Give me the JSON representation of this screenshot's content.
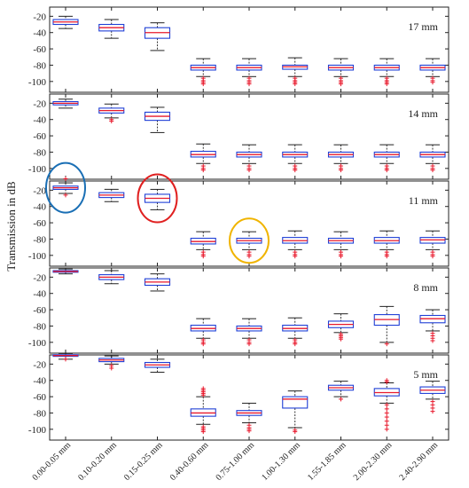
{
  "chart_data": {
    "type": "box",
    "ylabel": "Transmission in dB",
    "categories": [
      "0.00-0.05 mm",
      "0.10-0.20 mm",
      "0.15-0.25 mm",
      "0.40-0.60 mm",
      "0.75-1.00 mm",
      "1.00-1.30 mm",
      "1.55-1.85 mm",
      "2.00-2.30 mm",
      "2.40-2.90 mm"
    ],
    "yticks": [
      -20,
      -40,
      -60,
      -80,
      -100
    ],
    "ylim": [
      -110,
      -12
    ],
    "colors": {
      "box": "#1f3fd6",
      "median": "#e8192c",
      "whisker": "#222222",
      "outlier": "#e8192c"
    },
    "panels": [
      {
        "label": "17 mm",
        "boxes": [
          {
            "wl": -35,
            "q1": -30,
            "med": -27,
            "q3": -24,
            "wh": -20,
            "out": []
          },
          {
            "wl": -47,
            "q1": -38,
            "med": -34,
            "q3": -30,
            "wh": -24,
            "out": []
          },
          {
            "wl": -62,
            "q1": -47,
            "med": -40,
            "q3": -34,
            "wh": -28,
            "out": []
          },
          {
            "wl": -94,
            "q1": -86,
            "med": -83,
            "q3": -80,
            "wh": -72,
            "out": [
              -96,
              -99,
              -101,
              -103
            ]
          },
          {
            "wl": -94,
            "q1": -86,
            "med": -83,
            "q3": -80,
            "wh": -72,
            "out": [
              -96,
              -99,
              -101,
              -103
            ]
          },
          {
            "wl": -94,
            "q1": -85,
            "med": -82,
            "q3": -80,
            "wh": -71,
            "out": [
              -96,
              -99,
              -101,
              -103
            ]
          },
          {
            "wl": -94,
            "q1": -86,
            "med": -83,
            "q3": -80,
            "wh": -72,
            "out": [
              -96,
              -99,
              -101,
              -103
            ]
          },
          {
            "wl": -94,
            "q1": -86,
            "med": -83,
            "q3": -80,
            "wh": -72,
            "out": [
              -96,
              -99,
              -101,
              -103
            ]
          },
          {
            "wl": -94,
            "q1": -86,
            "med": -83,
            "q3": -80,
            "wh": -72,
            "out": [
              -96,
              -99,
              -101
            ]
          }
        ]
      },
      {
        "label": "14 mm",
        "boxes": [
          {
            "wl": -26,
            "q1": -22,
            "med": -20,
            "q3": -18,
            "wh": -15,
            "out": []
          },
          {
            "wl": -38,
            "q1": -32,
            "med": -29,
            "q3": -26,
            "wh": -21,
            "out": [
              -40,
              -42
            ]
          },
          {
            "wl": -56,
            "q1": -41,
            "med": -36,
            "q3": -31,
            "wh": -25,
            "out": []
          },
          {
            "wl": -94,
            "q1": -86,
            "med": -83,
            "q3": -79,
            "wh": -70,
            "out": [
              -97,
              -100,
              -102
            ]
          },
          {
            "wl": -94,
            "q1": -86,
            "med": -83,
            "q3": -80,
            "wh": -71,
            "out": [
              -97,
              -100,
              -102
            ]
          },
          {
            "wl": -94,
            "q1": -86,
            "med": -83,
            "q3": -80,
            "wh": -71,
            "out": [
              -97,
              -100,
              -102
            ]
          },
          {
            "wl": -94,
            "q1": -86,
            "med": -83,
            "q3": -80,
            "wh": -71,
            "out": [
              -97,
              -100,
              -102
            ]
          },
          {
            "wl": -94,
            "q1": -86,
            "med": -83,
            "q3": -80,
            "wh": -71,
            "out": [
              -97,
              -100,
              -102
            ]
          },
          {
            "wl": -94,
            "q1": -86,
            "med": -83,
            "q3": -80,
            "wh": -71,
            "out": [
              -97,
              -100,
              -102
            ]
          }
        ]
      },
      {
        "label": "11 mm",
        "boxes": [
          {
            "wl": -24,
            "q1": -19,
            "med": -17,
            "q3": -15,
            "wh": -11,
            "out": [
              -26,
              -6
            ]
          },
          {
            "wl": -34,
            "q1": -29,
            "med": -26,
            "q3": -23,
            "wh": -19,
            "out": []
          },
          {
            "wl": -44,
            "q1": -35,
            "med": -30,
            "q3": -25,
            "wh": -19,
            "out": []
          },
          {
            "wl": -93,
            "q1": -86,
            "med": -83,
            "q3": -79,
            "wh": -71,
            "out": [
              -96,
              -99,
              -101
            ]
          },
          {
            "wl": -93,
            "q1": -85,
            "med": -82,
            "q3": -79,
            "wh": -71,
            "out": [
              -96,
              -99,
              -101
            ]
          },
          {
            "wl": -93,
            "q1": -85,
            "med": -82,
            "q3": -78,
            "wh": -70,
            "out": [
              -96,
              -99,
              -101
            ]
          },
          {
            "wl": -93,
            "q1": -85,
            "med": -82,
            "q3": -79,
            "wh": -71,
            "out": [
              -96,
              -99,
              -101
            ]
          },
          {
            "wl": -93,
            "q1": -85,
            "med": -82,
            "q3": -78,
            "wh": -70,
            "out": [
              -96,
              -99,
              -101
            ]
          },
          {
            "wl": -93,
            "q1": -85,
            "med": -81,
            "q3": -78,
            "wh": -70,
            "out": [
              -96,
              -99,
              -101
            ]
          }
        ]
      },
      {
        "label": "8 mm",
        "boxes": [
          {
            "wl": -16,
            "q1": -14,
            "med": -13,
            "q3": -12,
            "wh": -10,
            "out": []
          },
          {
            "wl": -28,
            "q1": -23,
            "med": -20,
            "q3": -17,
            "wh": -12,
            "out": []
          },
          {
            "wl": -37,
            "q1": -30,
            "med": -26,
            "q3": -22,
            "wh": -16,
            "out": []
          },
          {
            "wl": -95,
            "q1": -86,
            "med": -83,
            "q3": -79,
            "wh": -71,
            "out": [
              -97,
              -100,
              -102
            ]
          },
          {
            "wl": -95,
            "q1": -86,
            "med": -83,
            "q3": -80,
            "wh": -71,
            "out": [
              -97,
              -100,
              -102
            ]
          },
          {
            "wl": -95,
            "q1": -86,
            "med": -83,
            "q3": -79,
            "wh": -70,
            "out": [
              -97,
              -100,
              -102
            ]
          },
          {
            "wl": -88,
            "q1": -82,
            "med": -78,
            "q3": -74,
            "wh": -65,
            "out": [
              -90,
              -92,
              -94,
              -96
            ]
          },
          {
            "wl": -100,
            "q1": -79,
            "med": -72,
            "q3": -66,
            "wh": -56,
            "out": [
              -102
            ]
          },
          {
            "wl": -86,
            "q1": -76,
            "med": -71,
            "q3": -67,
            "wh": -60,
            "out": [
              -89,
              -92,
              -95,
              -98
            ]
          }
        ]
      },
      {
        "label": "5 mm",
        "boxes": [
          {
            "wl": -14,
            "q1": -10.5,
            "med": -9.5,
            "q3": -8.5,
            "wh": -7,
            "out": [
              -14
            ]
          },
          {
            "wl": -20,
            "q1": -17,
            "med": -15,
            "q3": -13,
            "wh": -10,
            "out": [
              -22,
              -25
            ]
          },
          {
            "wl": -30,
            "q1": -24,
            "med": -21,
            "q3": -18,
            "wh": -14,
            "out": []
          },
          {
            "wl": -94,
            "q1": -84,
            "med": -80,
            "q3": -75,
            "wh": -60,
            "out": [
              -50,
              -52,
              -54,
              -56,
              -58,
              -97,
              -99,
              -101,
              -103
            ]
          },
          {
            "wl": -92,
            "q1": -83,
            "med": -80,
            "q3": -77,
            "wh": -68,
            "out": [
              -95,
              -98,
              -100,
              -102
            ]
          },
          {
            "wl": -98,
            "q1": -74,
            "med": -63,
            "q3": -60,
            "wh": -53,
            "out": [
              -101,
              -103
            ]
          },
          {
            "wl": -60,
            "q1": -52,
            "med": -49,
            "q3": -46,
            "wh": -41,
            "out": [
              -63
            ]
          },
          {
            "wl": -68,
            "q1": -59,
            "med": -55,
            "q3": -50,
            "wh": -43,
            "out": [
              -40,
              -42,
              -70,
              -75,
              -80,
              -85,
              -90,
              -95,
              -100
            ]
          },
          {
            "wl": -63,
            "q1": -56,
            "med": -52,
            "q3": -48,
            "wh": -41,
            "out": [
              -66,
              -70,
              -74,
              -78
            ]
          }
        ]
      }
    ],
    "annotations": [
      {
        "panel": 2,
        "box": 0,
        "color": "#1a6fb5",
        "ry": 20
      },
      {
        "panel": 2,
        "box": 2,
        "color": "#e02020",
        "ry": 19
      },
      {
        "panel": 2,
        "box": 4,
        "color": "#f0b400",
        "ry": 17
      }
    ]
  }
}
